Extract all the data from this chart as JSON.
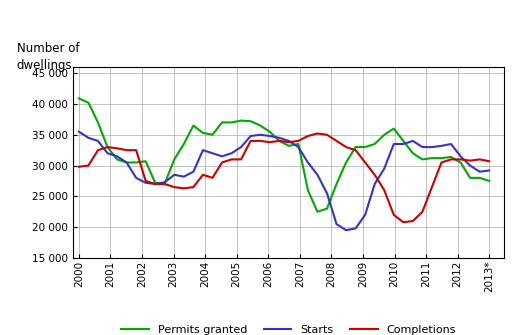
{
  "title": "Number of\ndwellings",
  "ylim": [
    15000,
    46000
  ],
  "yticks": [
    15000,
    20000,
    25000,
    30000,
    35000,
    40000,
    45000
  ],
  "ytick_labels": [
    "15 000",
    "20 000",
    "25 000",
    "30 000",
    "35 000",
    "40 000",
    "45 000"
  ],
  "xtick_labels": [
    "2000",
    "2001",
    "2002",
    "2003",
    "2004",
    "2005",
    "2006",
    "2007",
    "2008",
    "2009",
    "2010",
    "2011",
    "2012",
    "2013*"
  ],
  "legend": [
    "Permits granted",
    "Starts",
    "Completions"
  ],
  "colors": {
    "permits": "#00aa00",
    "starts": "#3333cc",
    "completions": "#cc0000"
  },
  "permits_granted": [
    40900,
    40200,
    37000,
    33000,
    31000,
    30500,
    30500,
    30700,
    27200,
    27100,
    31000,
    33500,
    36500,
    35300,
    35000,
    37000,
    37000,
    37300,
    37200,
    36500,
    35500,
    34000,
    33200,
    33500,
    26000,
    22500,
    23000,
    27000,
    30500,
    33000,
    33000,
    33500,
    35000,
    36000,
    34000,
    32000,
    31000,
    31200,
    31200,
    31400,
    30500,
    28000,
    28000,
    27500
  ],
  "starts": [
    35500,
    34500,
    34000,
    32000,
    31500,
    30500,
    28000,
    27200,
    27000,
    27300,
    28500,
    28200,
    29000,
    32500,
    32000,
    31500,
    32000,
    33000,
    34800,
    35000,
    34800,
    34500,
    34000,
    33000,
    30500,
    28500,
    25500,
    20500,
    19500,
    19800,
    22000,
    27000,
    29500,
    33500,
    33500,
    34000,
    33000,
    33000,
    33200,
    33500,
    31500,
    30000,
    29000,
    29200
  ],
  "completions": [
    29800,
    30000,
    32500,
    33000,
    32800,
    32500,
    32500,
    27500,
    27000,
    27000,
    26500,
    26300,
    26500,
    28500,
    28000,
    30500,
    31000,
    31000,
    34000,
    34000,
    33800,
    34000,
    33800,
    34000,
    34800,
    35200,
    35000,
    34000,
    33000,
    32500,
    30500,
    28500,
    26000,
    22000,
    20800,
    21000,
    22500,
    26500,
    30500,
    31000,
    31000,
    30800,
    31000,
    30700
  ],
  "n_points": 44,
  "x_start": 2000,
  "x_end": 2013.5,
  "xlim": [
    1999.8,
    2014.0
  ]
}
